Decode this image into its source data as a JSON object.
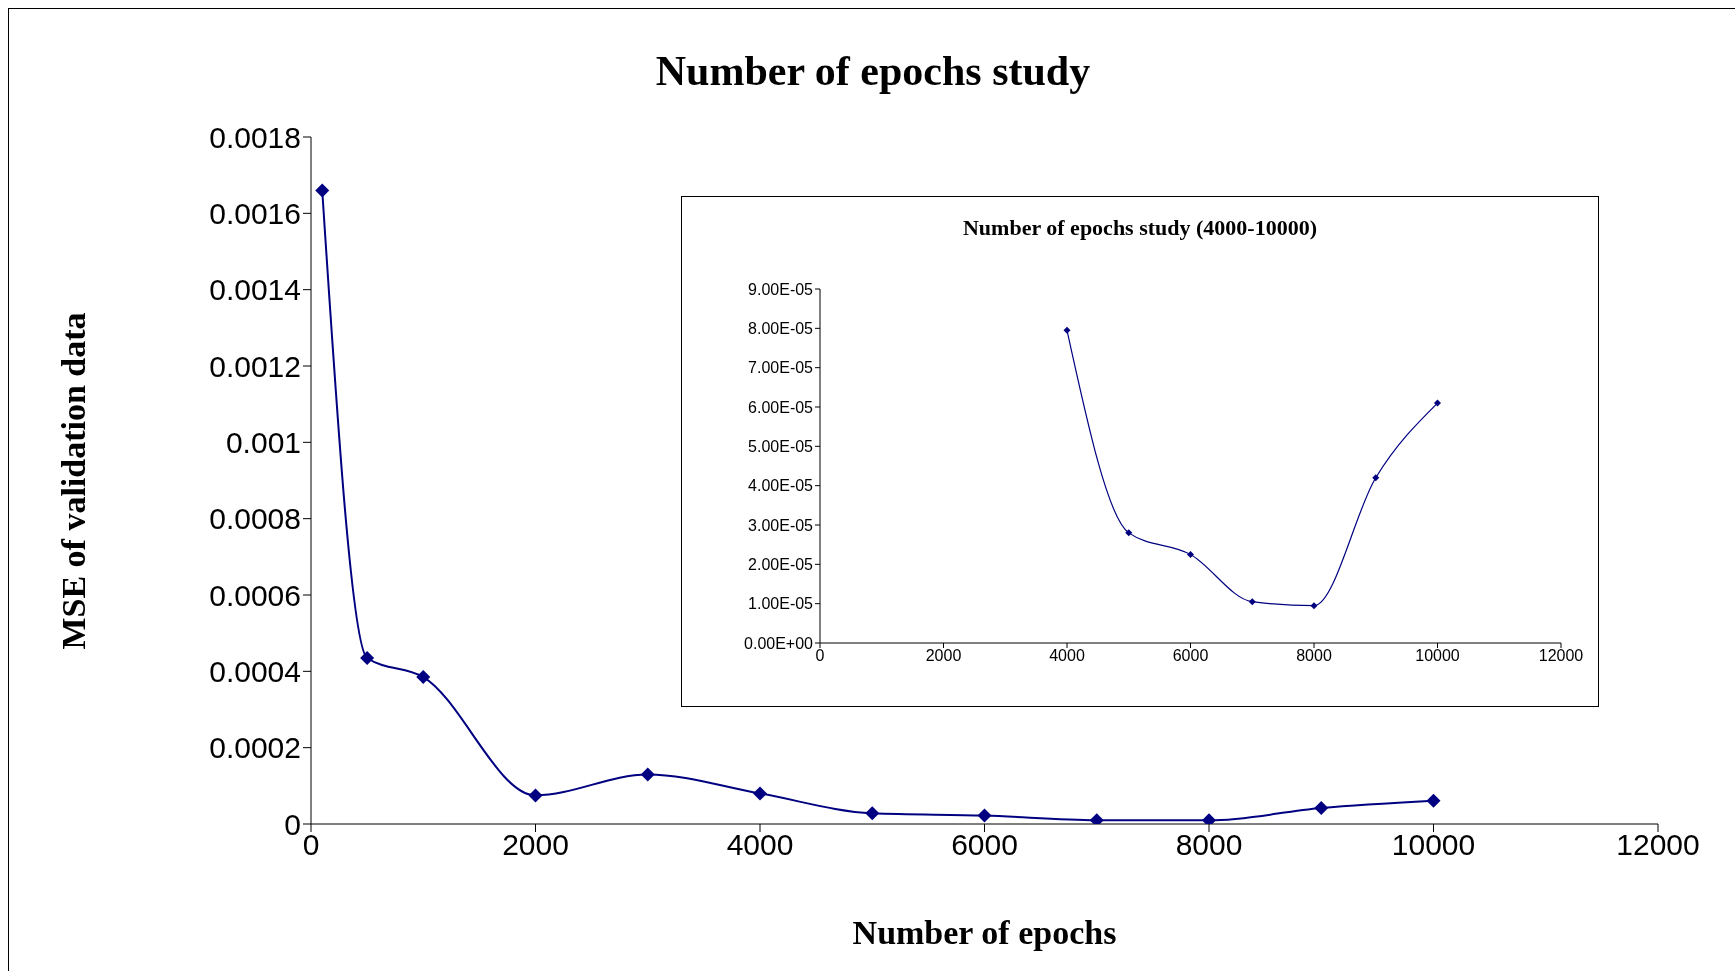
{
  "chart_data": [
    {
      "type": "line",
      "title": "Number of epochs study",
      "xlabel": "Number of epochs",
      "ylabel": "MSE of validation data",
      "x": [
        100,
        500,
        1000,
        2000,
        3000,
        4000,
        5000,
        6000,
        7000,
        8000,
        9000,
        10000
      ],
      "series": [
        {
          "color": "#000080",
          "values": [
            0.00166,
            0.000435,
            0.000385,
            7.5e-05,
            0.00013,
            8e-05,
            2.8e-05,
            2.2e-05,
            1e-05,
            9.5e-06,
            4.2e-05,
            6.1e-05
          ]
        }
      ],
      "xlim": [
        0,
        12000
      ],
      "xticks": [
        0,
        2000,
        4000,
        6000,
        8000,
        10000,
        12000
      ],
      "ylim": [
        0,
        0.0018
      ],
      "yticks": [
        0,
        0.0002,
        0.0004,
        0.0006,
        0.0008,
        0.001,
        0.0012,
        0.0014,
        0.0016,
        0.0018
      ],
      "marker": "diamond",
      "grid": false,
      "legend": false
    },
    {
      "type": "line",
      "title": "Number of epochs study (4000-10000)",
      "x": [
        4000,
        5000,
        6000,
        7000,
        8000,
        9000,
        10000
      ],
      "series": [
        {
          "color": "#000080",
          "values": [
            7.95e-05,
            2.8e-05,
            2.25e-05,
            1.05e-05,
            9.5e-06,
            4.2e-05,
            6.1e-05
          ]
        }
      ],
      "xlim": [
        0,
        12000
      ],
      "xticks": [
        0,
        2000,
        4000,
        6000,
        8000,
        10000,
        12000
      ],
      "ylim": [
        0,
        9e-05
      ],
      "yticks": [
        {
          "value": 0,
          "label": "0.00E+00"
        },
        {
          "value": 1e-05,
          "label": "1.00E-05"
        },
        {
          "value": 2e-05,
          "label": "2.00E-05"
        },
        {
          "value": 3e-05,
          "label": "3.00E-05"
        },
        {
          "value": 4e-05,
          "label": "4.00E-05"
        },
        {
          "value": 5e-05,
          "label": "5.00E-05"
        },
        {
          "value": 6e-05,
          "label": "6.00E-05"
        },
        {
          "value": 7e-05,
          "label": "7.00E-05"
        },
        {
          "value": 8e-05,
          "label": "8.00E-05"
        },
        {
          "value": 9e-05,
          "label": "9.00E-05"
        }
      ],
      "marker": "diamond",
      "grid": false,
      "legend": false
    }
  ]
}
